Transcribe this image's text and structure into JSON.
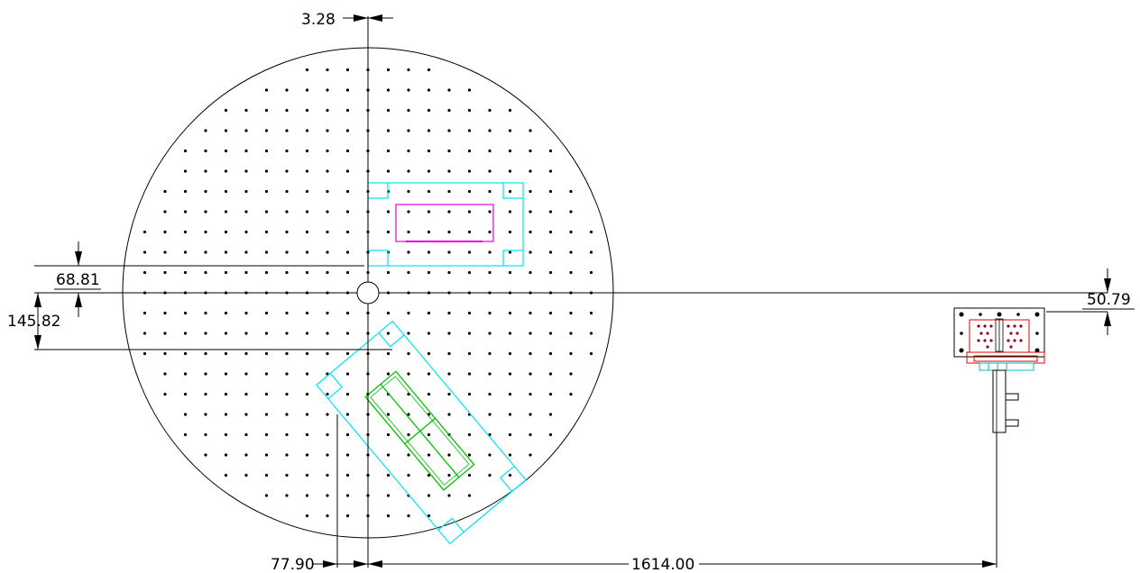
{
  "dimensions": {
    "offset_top": "3.28",
    "offset_left_upper": "68.81",
    "offset_left_lower": "145.82",
    "offset_right": "50.79",
    "offset_bottom_small": "77.90",
    "offset_bottom_large": "1614.00"
  },
  "colors": {
    "outline": "#000000",
    "fixture_outline": "#00e5ee",
    "part_magenta": "#e000e0",
    "part_green": "#00c000",
    "part_red": "#e00000",
    "hole_dot": "#000000"
  }
}
